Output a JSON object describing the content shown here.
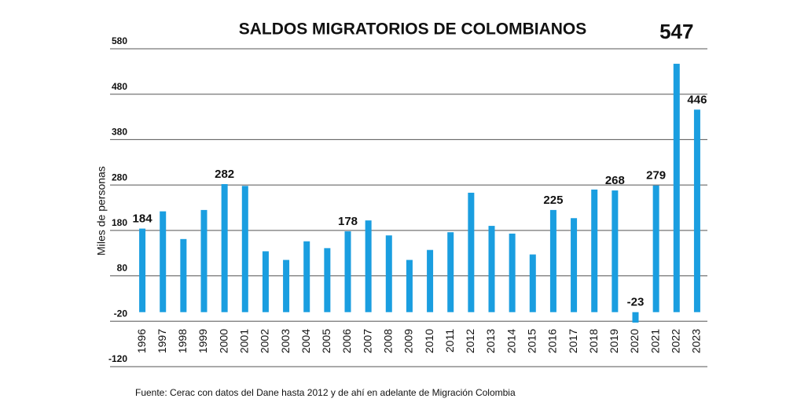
{
  "chart_data": {
    "type": "bar",
    "title": "SALDOS MIGRATORIOS DE COLOMBIANOS",
    "y_label": "Miles de personas",
    "source": "Fuente: Cerac con datos del Dane hasta 2012 y de ahí en adelante de Migración Colombia",
    "categories": [
      "1996",
      "1997",
      "1998",
      "1999",
      "2000",
      "2001",
      "2002",
      "2003",
      "2004",
      "2005",
      "2006",
      "2007",
      "2008",
      "2009",
      "2010",
      "2011",
      "2012",
      "2013",
      "2014",
      "2015",
      "2016",
      "2017",
      "2018",
      "2019",
      "2020",
      "2021",
      "2022",
      "2023"
    ],
    "values": [
      184,
      222,
      161,
      225,
      282,
      278,
      134,
      115,
      156,
      141,
      178,
      202,
      169,
      115,
      137,
      176,
      263,
      190,
      173,
      127,
      225,
      207,
      270,
      268,
      -23,
      279,
      547,
      446
    ],
    "show_label": [
      true,
      false,
      false,
      false,
      true,
      false,
      false,
      false,
      false,
      false,
      true,
      false,
      false,
      false,
      false,
      false,
      false,
      false,
      false,
      false,
      true,
      false,
      false,
      true,
      true,
      true,
      true,
      true
    ],
    "color": "#1a9ee0",
    "highlight_color": "#e31e24",
    "ylim": [
      -120,
      580
    ],
    "yticks": [
      -120,
      -20,
      80,
      180,
      280,
      380,
      480,
      580
    ],
    "grid": true
  }
}
